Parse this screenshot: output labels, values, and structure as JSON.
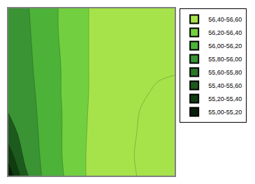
{
  "chart_data": {
    "type": "contour",
    "tick_labels": false,
    "grid": true,
    "legend": "right",
    "x": [
      0,
      1,
      2,
      3,
      4,
      5,
      6,
      7,
      8,
      9,
      10
    ],
    "y": [
      0,
      1,
      2,
      3,
      4,
      5,
      6,
      7,
      8
    ],
    "xlim": [
      0,
      10
    ],
    "ylim": [
      0,
      8
    ],
    "xticks": [
      0,
      1,
      2,
      3,
      4,
      5,
      6,
      7,
      8,
      9,
      10
    ],
    "yticks": [
      0,
      1,
      2,
      3,
      4,
      5,
      6,
      7,
      8
    ],
    "z": [
      [
        55.05,
        55.55,
        55.8,
        55.95,
        56.1,
        56.25,
        56.3,
        56.35,
        56.42,
        56.48,
        56.5
      ],
      [
        55.3,
        55.65,
        55.82,
        55.97,
        56.1,
        56.25,
        56.3,
        56.36,
        56.43,
        56.48,
        56.5
      ],
      [
        55.5,
        55.68,
        55.83,
        55.97,
        56.1,
        56.24,
        56.3,
        56.35,
        56.42,
        56.47,
        56.48
      ],
      [
        55.6,
        55.7,
        55.84,
        55.97,
        56.1,
        56.23,
        56.3,
        56.34,
        56.41,
        56.45,
        56.46
      ],
      [
        55.62,
        55.72,
        55.85,
        55.98,
        56.1,
        56.22,
        56.28,
        56.32,
        56.38,
        56.42,
        56.44
      ],
      [
        55.63,
        55.74,
        55.86,
        55.98,
        56.1,
        56.22,
        56.28,
        56.31,
        56.36,
        56.38,
        56.39
      ],
      [
        55.64,
        55.75,
        55.87,
        55.99,
        56.1,
        56.22,
        56.27,
        56.3,
        56.34,
        56.36,
        56.37
      ],
      [
        55.65,
        55.76,
        55.88,
        56.0,
        56.1,
        56.22,
        56.27,
        56.3,
        56.33,
        56.35,
        56.36
      ],
      [
        55.66,
        55.77,
        55.89,
        56.0,
        56.1,
        56.22,
        56.27,
        56.3,
        56.32,
        56.34,
        56.35
      ]
    ],
    "bands": [
      {
        "label": "56,40-56,60",
        "from": 56.4,
        "to": 56.6,
        "color": "#a6e34a"
      },
      {
        "label": "56,20-56,40",
        "from": 56.2,
        "to": 56.4,
        "color": "#72d040"
      },
      {
        "label": "56,00-56,20",
        "from": 56.0,
        "to": 56.2,
        "color": "#4cb238"
      },
      {
        "label": "55,80-56,00",
        "from": 55.8,
        "to": 56.0,
        "color": "#3a9434"
      },
      {
        "label": "55,60-55,80",
        "from": 55.6,
        "to": 55.8,
        "color": "#2b772b"
      },
      {
        "label": "55,40-55,60",
        "from": 55.4,
        "to": 55.6,
        "color": "#1d5a1d"
      },
      {
        "label": "55,20-55,40",
        "from": 55.2,
        "to": 55.4,
        "color": "#103d10"
      },
      {
        "label": "55,00-55,20",
        "from": 55.0,
        "to": 55.2,
        "color": "#082008"
      }
    ]
  }
}
